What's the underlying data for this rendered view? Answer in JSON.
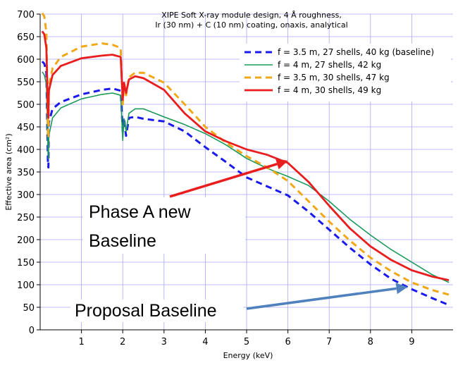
{
  "chart_data": {
    "type": "line",
    "title": [
      "XIPE Soft X-ray module design, 4 Å roughness,",
      "Ir (30 nm) + C (10 nm) coating, onaxis, analytical"
    ],
    "xlabel": "Energy (keV)",
    "ylabel": "Effective area (cm²)",
    "xlim": [
      0,
      10
    ],
    "ylim": [
      0,
      700
    ],
    "xticks": [
      1,
      2,
      3,
      4,
      5,
      6,
      7,
      8,
      9
    ],
    "yticks": [
      0,
      50,
      100,
      150,
      200,
      250,
      300,
      350,
      400,
      450,
      500,
      550,
      600,
      650,
      700
    ],
    "grid": true,
    "legend_position": "top-right",
    "series": [
      {
        "name": "f = 3.5 m, 27 shells, 40 kg (baseline)",
        "color": "#1a1aee",
        "style": "dashed",
        "x": [
          0.05,
          0.1,
          0.15,
          0.19,
          0.2,
          0.21,
          0.3,
          0.5,
          1.0,
          1.5,
          1.75,
          1.95,
          2.0,
          2.03,
          2.08,
          2.15,
          2.3,
          2.5,
          3.0,
          3.5,
          4.0,
          4.5,
          5.0,
          5.5,
          6.0,
          6.5,
          7.0,
          7.5,
          8.0,
          8.5,
          9.0,
          9.5,
          9.9
        ],
        "y": [
          595,
          590,
          570,
          365,
          360,
          460,
          490,
          505,
          522,
          532,
          535,
          530,
          440,
          470,
          430,
          470,
          472,
          468,
          462,
          440,
          405,
          372,
          338,
          318,
          298,
          262,
          222,
          182,
          145,
          113,
          90,
          70,
          55
        ]
      },
      {
        "name": "f = 4 m, 27 shells, 42 kg",
        "color": "#1a9a5a",
        "style": "solid",
        "x": [
          0.05,
          0.1,
          0.15,
          0.19,
          0.2,
          0.21,
          0.3,
          0.5,
          1.0,
          1.5,
          1.75,
          1.95,
          2.0,
          2.03,
          2.08,
          2.15,
          2.3,
          2.5,
          3.0,
          3.5,
          4.0,
          4.5,
          5.0,
          5.5,
          6.0,
          6.5,
          7.0,
          7.5,
          8.0,
          8.5,
          9.0,
          9.5,
          9.9
        ],
        "y": [
          572,
          565,
          545,
          395,
          380,
          430,
          470,
          492,
          512,
          522,
          525,
          520,
          420,
          468,
          440,
          480,
          490,
          490,
          472,
          455,
          435,
          410,
          380,
          358,
          340,
          320,
          285,
          245,
          210,
          178,
          150,
          122,
          105
        ]
      },
      {
        "name": "f = 3.5 m, 30 shells, 47 kg",
        "color": "#f0a818",
        "style": "dashed",
        "x": [
          0.05,
          0.1,
          0.15,
          0.19,
          0.2,
          0.21,
          0.3,
          0.5,
          1.0,
          1.5,
          1.75,
          1.95,
          2.0,
          2.03,
          2.08,
          2.15,
          2.3,
          2.5,
          3.0,
          3.5,
          4.0,
          4.5,
          5.0,
          5.5,
          6.0,
          6.5,
          7.0,
          7.5,
          8.0,
          8.5,
          9.0,
          9.5,
          9.9
        ],
        "y": [
          702,
          695,
          660,
          450,
          425,
          540,
          580,
          605,
          628,
          635,
          632,
          625,
          500,
          545,
          520,
          560,
          570,
          570,
          548,
          500,
          450,
          415,
          385,
          360,
          330,
          285,
          240,
          198,
          160,
          130,
          105,
          88,
          78
        ]
      },
      {
        "name": "f = 4 m, 30 shells, 49 kg",
        "color": "#e81e1e",
        "style": "solid",
        "x": [
          0.05,
          0.1,
          0.15,
          0.19,
          0.2,
          0.21,
          0.3,
          0.5,
          1.0,
          1.5,
          1.75,
          1.95,
          2.0,
          2.03,
          2.08,
          2.15,
          2.3,
          2.5,
          3.0,
          3.5,
          4.0,
          4.5,
          5.0,
          5.5,
          6.0,
          6.5,
          7.0,
          7.5,
          8.0,
          8.5,
          9.0,
          9.5,
          9.9
        ],
        "y": [
          662,
          655,
          625,
          480,
          470,
          530,
          565,
          585,
          602,
          608,
          610,
          605,
          510,
          548,
          525,
          555,
          562,
          558,
          532,
          480,
          440,
          418,
          400,
          388,
          370,
          328,
          275,
          225,
          185,
          155,
          132,
          118,
          110
        ]
      }
    ],
    "annotations": [
      {
        "text_lines": [
          "Phase A new",
          "Baseline"
        ],
        "arrow_color": "#e81e1e",
        "arrow_to": [
          6.0,
          375
        ]
      },
      {
        "text_lines": [
          "Proposal Baseline"
        ],
        "arrow_color": "#4f81bd",
        "arrow_to": [
          8.9,
          95
        ]
      }
    ]
  }
}
